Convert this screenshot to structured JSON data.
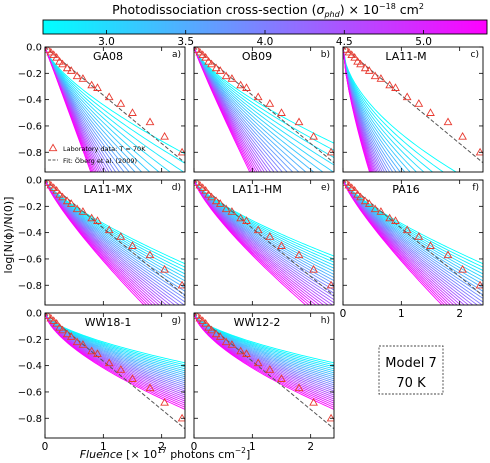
{
  "colorbar": {
    "title": "Photodissociation cross-section (σphd) × 10⁻¹⁸ cm²",
    "title_main": "Photodissociation cross-section (",
    "title_sym": "σ",
    "title_sub": "phd",
    "title_mid": ") × 10",
    "title_exp": "−18",
    "title_unit": " cm",
    "title_unit_exp": "2",
    "range": [
      2.6,
      5.4
    ],
    "ticks": [
      "3.0",
      "3.5",
      "4.0",
      "4.5",
      "5.0"
    ],
    "tick_values": [
      3.0,
      3.5,
      4.0,
      4.5,
      5.0
    ],
    "colors": [
      "#00ffff",
      "#ff00ff"
    ]
  },
  "axes_labels": {
    "ylabel": "log[N(ϕ)/N(0)]",
    "xlabel_main": "Fluence",
    "xlabel_rest": " [× 10",
    "xlabel_exp": "17",
    "xlabel_unit": " photons cm",
    "xlabel_unit_exp": "−2",
    "xlabel_end": "]"
  },
  "legend": {
    "lab": "Laboratory data: T = 70K",
    "fit": "Fit: Öberg et al. (2009)"
  },
  "colors": {
    "lab_marker": "#e8392f",
    "fit_line": "#555555"
  },
  "model_box": {
    "line1": "Model 7",
    "line2": "70 K"
  },
  "chart_data": {
    "type": "line",
    "grid": "off",
    "xlim": [
      0,
      2.4
    ],
    "ylim": [
      -0.95,
      0
    ],
    "x_ticks": [
      0,
      1,
      2
    ],
    "y_ticks": [
      "0.0",
      "−0.2",
      "−0.4",
      "−0.6",
      "−0.8"
    ],
    "y_tick_values": [
      0,
      -0.2,
      -0.4,
      -0.6,
      -0.8
    ],
    "lab_data": {
      "x": [
        0.05,
        0.1,
        0.15,
        0.2,
        0.25,
        0.3,
        0.38,
        0.45,
        0.55,
        0.65,
        0.8,
        0.9,
        1.1,
        1.3,
        1.5,
        1.8,
        2.05,
        2.35
      ],
      "y": [
        -0.02,
        -0.04,
        -0.06,
        -0.08,
        -0.11,
        -0.13,
        -0.16,
        -0.18,
        -0.22,
        -0.24,
        -0.29,
        -0.31,
        -0.38,
        -0.43,
        -0.5,
        -0.57,
        -0.68,
        -0.8
      ]
    },
    "fit": {
      "x": [
        0,
        2.4
      ],
      "y": [
        0,
        -0.88
      ]
    },
    "panels": [
      {
        "label": "GA08",
        "tag": "a)",
        "decay": [
          0.2,
          0.55
        ],
        "p": [
          0.7,
          1.0
        ]
      },
      {
        "label": "OB09",
        "tag": "b)",
        "decay": [
          0.18,
          0.45
        ],
        "p": [
          0.7,
          0.92
        ]
      },
      {
        "label": "LA11-M",
        "tag": "c)",
        "decay": [
          0.3,
          0.75
        ],
        "p": [
          0.55,
          0.7
        ]
      },
      {
        "label": "LA11-MX",
        "tag": "d)",
        "decay": [
          0.15,
          0.28
        ],
        "p": [
          0.75,
          0.82
        ]
      },
      {
        "label": "LA11-HM",
        "tag": "e)",
        "decay": [
          0.14,
          0.26
        ],
        "p": [
          0.72,
          0.78
        ]
      },
      {
        "label": "PA16",
        "tag": "f)",
        "decay": [
          0.15,
          0.28
        ],
        "p": [
          0.75,
          0.82
        ]
      },
      {
        "label": "WW18-1",
        "tag": "g)",
        "decay": [
          0.1,
          0.19
        ],
        "p": [
          0.62,
          0.64
        ]
      },
      {
        "label": "WW12-2",
        "tag": "h)",
        "decay": [
          0.1,
          0.19
        ],
        "p": [
          0.62,
          0.64
        ]
      }
    ]
  }
}
